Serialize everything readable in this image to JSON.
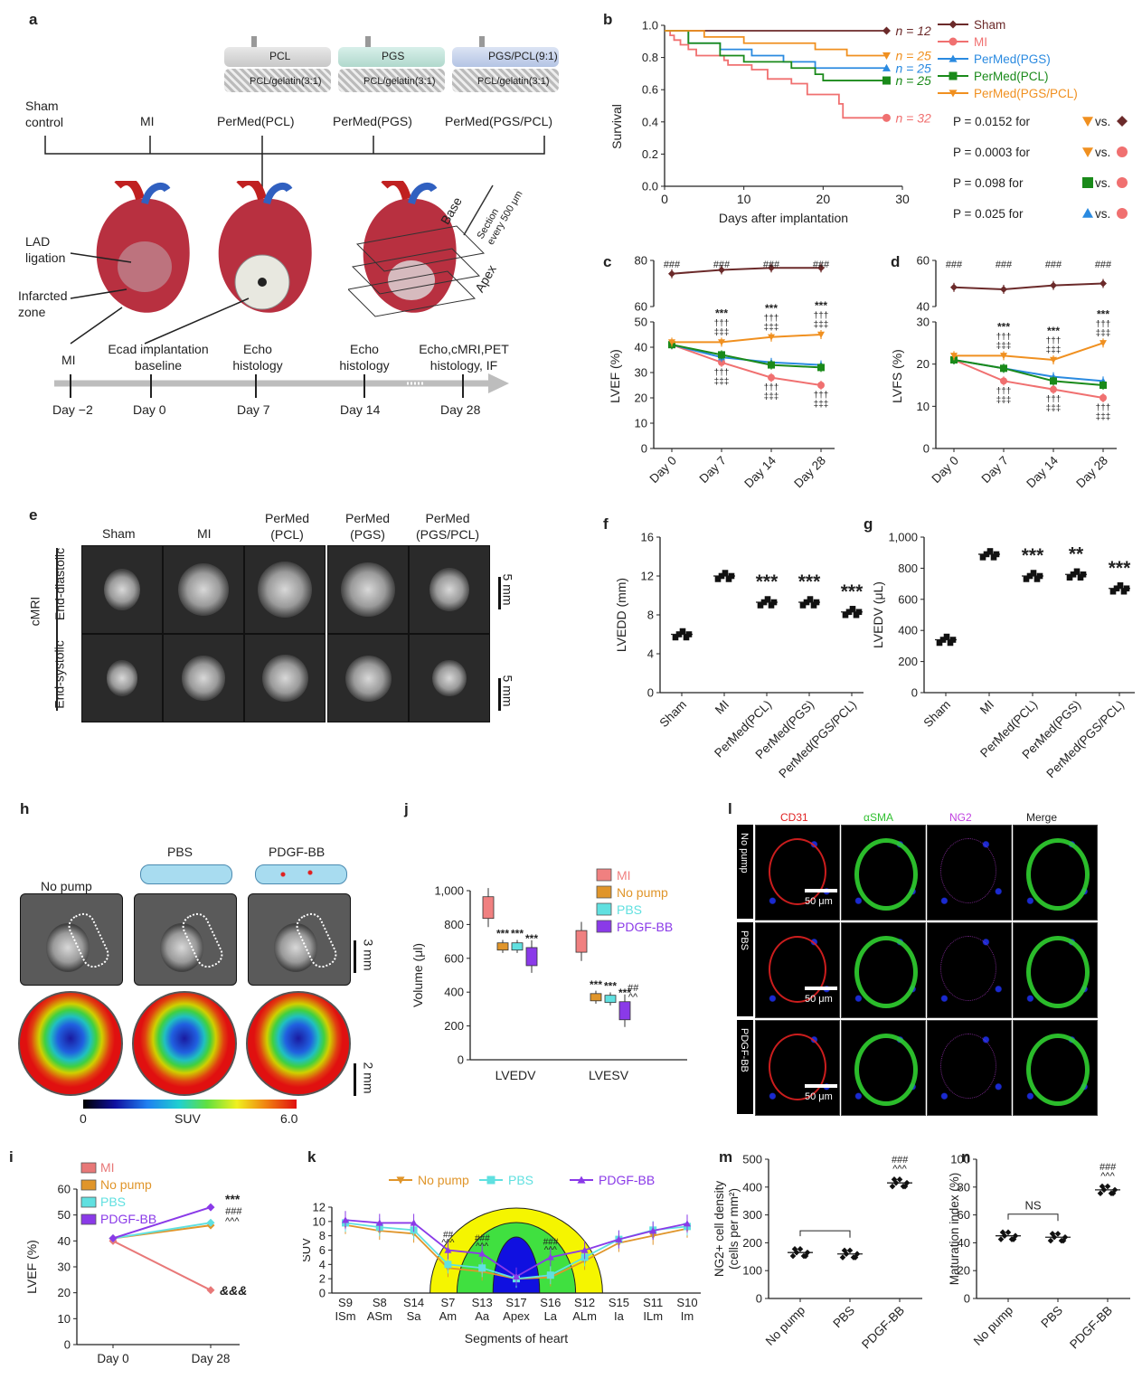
{
  "panel_labels": [
    "a",
    "b",
    "c",
    "d",
    "e",
    "f",
    "g",
    "h",
    "i",
    "j",
    "k",
    "l",
    "m",
    "n"
  ],
  "panel_a": {
    "groups": [
      "Sham\ncontrol",
      "MI",
      "PerMed(PCL)",
      "PerMed(PGS)",
      "PerMed(PGS/PCL)"
    ],
    "device_tops": [
      "PCL",
      "PGS",
      "PGS/PCL(9:1)"
    ],
    "device_bottoms": [
      "PCL/gelatin(3:1)",
      "PCL/gelatin(3:1)",
      "PCL/gelatin(3:1)"
    ],
    "heart_labels": {
      "lad": "LAD\nligation",
      "infarct": "Infarcted\nzone",
      "base": "Base",
      "apex": "Apex",
      "section": "Section\nevery 500 μm"
    },
    "timeline_events": [
      "MI",
      "Ecad implantation\nbaseline",
      "Echo\nhistology",
      "Echo\nhistology",
      "Echo,cMRI,PET\nhistology, IF"
    ],
    "timeline_days": [
      "Day −2",
      "Day 0",
      "Day 7",
      "Day 14",
      "Day 28"
    ]
  },
  "panel_e": {
    "columns": [
      "Sham",
      "MI",
      "PerMed\n(PCL)",
      "PerMed\n(PGS)",
      "PerMed\n(PGS/PCL)"
    ],
    "rows": [
      "End-diastolic",
      "End-systolic"
    ],
    "side_label": "cMRI",
    "scale": "5 mm"
  },
  "panel_h": {
    "columns": [
      "No pump",
      "PBS",
      "PDGF-BB"
    ],
    "scale_top": "3 mm",
    "scale_bottom": "2 mm",
    "colorbar": {
      "min": "0",
      "label": "SUV",
      "max": "6.0"
    }
  },
  "panel_l": {
    "columns": [
      "CD31",
      "αSMA",
      "NG2",
      "Merge"
    ],
    "rows": [
      "No pump",
      "PBS",
      "PDGF-BB"
    ],
    "scale": "50 μm",
    "colors": {
      "cd31": "#e02020",
      "asma": "#30d030",
      "ng2": "#c040e0"
    }
  },
  "chart_data": [
    {
      "panel": "b",
      "type": "line",
      "xlabel": "Days after implantation",
      "ylabel": "Survival",
      "xlim": [
        0,
        30
      ],
      "ylim": [
        0,
        1.0
      ],
      "xticks": [
        0,
        10,
        20,
        30
      ],
      "yticks": [
        0.0,
        0.2,
        0.4,
        0.6,
        0.8,
        1.0
      ],
      "series": [
        {
          "name": "Sham",
          "color": "#6b2a2a",
          "n": "n = 12",
          "steps": [
            [
              0,
              1.0
            ],
            [
              28,
              1.0
            ]
          ]
        },
        {
          "name": "MI",
          "color": "#f07070",
          "n": "n = 32",
          "steps": [
            [
              0,
              1.0
            ],
            [
              0.7,
              0.97
            ],
            [
              1.2,
              0.94
            ],
            [
              2,
              0.91
            ],
            [
              3,
              0.88
            ],
            [
              4,
              0.84
            ],
            [
              7.5,
              0.81
            ],
            [
              8,
              0.78
            ],
            [
              11,
              0.75
            ],
            [
              13,
              0.69
            ],
            [
              16,
              0.66
            ],
            [
              18,
              0.59
            ],
            [
              22,
              0.53
            ],
            [
              22.5,
              0.44
            ],
            [
              28,
              0.44
            ]
          ]
        },
        {
          "name": "PerMed(PGS)",
          "color": "#2a8ae0",
          "n": "n = 25",
          "steps": [
            [
              0,
              1.0
            ],
            [
              3,
              0.92
            ],
            [
              7,
              0.88
            ],
            [
              11,
              0.84
            ],
            [
              15,
              0.8
            ],
            [
              19,
              0.76
            ],
            [
              28,
              0.76
            ]
          ]
        },
        {
          "name": "PerMed(PCL)",
          "color": "#1a8a1a",
          "n": "n = 25",
          "steps": [
            [
              0,
              1.0
            ],
            [
              3,
              0.92
            ],
            [
              7,
              0.84
            ],
            [
              10,
              0.8
            ],
            [
              16,
              0.76
            ],
            [
              19,
              0.72
            ],
            [
              20,
              0.68
            ],
            [
              28,
              0.68
            ]
          ]
        },
        {
          "name": "PerMed(PGS/PCL)",
          "color": "#f09020",
          "n": "n = 25",
          "steps": [
            [
              0,
              1.0
            ],
            [
              5,
              0.96
            ],
            [
              10,
              0.92
            ],
            [
              19,
              0.88
            ],
            [
              23,
              0.84
            ],
            [
              28,
              0.84
            ]
          ]
        }
      ],
      "pvalues": [
        {
          "p": "0.0152",
          "text": "for",
          "a": "PerMed(PGS/PCL)",
          "b": "Sham"
        },
        {
          "p": "0.0003",
          "text": "for",
          "a": "PerMed(PGS/PCL)",
          "b": "MI"
        },
        {
          "p": "0.098",
          "text": "for",
          "a": "PerMed(PCL)",
          "b": "MI"
        },
        {
          "p": "0.025",
          "text": "for",
          "a": "PerMed(PGS)",
          "b": "MI"
        }
      ],
      "p_prefix": "P =",
      "vs": "vs."
    },
    {
      "panel": "c",
      "type": "line",
      "ylabel": "LVEF (%)",
      "categories": [
        "Day 0",
        "Day 7",
        "Day 14",
        "Day 28"
      ],
      "upper_ylim": [
        60,
        80
      ],
      "lower_ylim": [
        0,
        50
      ],
      "upper_yticks": [
        60,
        80
      ],
      "lower_yticks": [
        0,
        10,
        20,
        30,
        40,
        50
      ],
      "series": [
        {
          "name": "Sham",
          "color": "#6b2a2a",
          "values": [
            75,
            77,
            78,
            78
          ]
        },
        {
          "name": "MI",
          "color": "#f07070",
          "values": [
            41,
            34,
            28,
            25
          ]
        },
        {
          "name": "PerMed(PGS)",
          "color": "#2a8ae0",
          "values": [
            41,
            36,
            34,
            33
          ]
        },
        {
          "name": "PerMed(PCL)",
          "color": "#1a8a1a",
          "values": [
            41,
            37,
            33,
            32
          ]
        },
        {
          "name": "PerMed(PGS/PCL)",
          "color": "#f09020",
          "values": [
            42,
            42,
            44,
            45
          ]
        }
      ],
      "annotations": {
        "hash": "###",
        "stars": "***",
        "dagger": "†††",
        "ddagger": "‡‡‡"
      }
    },
    {
      "panel": "d",
      "type": "line",
      "ylabel": "LVFS (%)",
      "categories": [
        "Day 0",
        "Day 7",
        "Day 14",
        "Day 28"
      ],
      "upper_ylim": [
        40,
        60
      ],
      "lower_ylim": [
        0,
        30
      ],
      "upper_yticks": [
        40,
        60
      ],
      "lower_yticks": [
        0,
        10,
        20,
        30
      ],
      "series": [
        {
          "name": "Sham",
          "color": "#6b2a2a",
          "values": [
            48,
            47,
            49,
            50
          ]
        },
        {
          "name": "MI",
          "color": "#f07070",
          "values": [
            21,
            16,
            14,
            12
          ]
        },
        {
          "name": "PerMed(PGS)",
          "color": "#2a8ae0",
          "values": [
            21,
            19,
            17,
            16
          ]
        },
        {
          "name": "PerMed(PCL)",
          "color": "#1a8a1a",
          "values": [
            21,
            19,
            16,
            15
          ]
        },
        {
          "name": "PerMed(PGS/PCL)",
          "color": "#f09020",
          "values": [
            22,
            22,
            21,
            25
          ]
        }
      ],
      "annotations": {
        "hash": "###",
        "stars": "***",
        "dagger": "†††",
        "ddagger": "‡‡‡"
      }
    },
    {
      "panel": "f",
      "type": "scatter",
      "ylabel": "LVEDD (mm)",
      "categories": [
        "Sham",
        "MI",
        "PerMed(PCL)",
        "PerMed(PGS)",
        "PerMed(PGS/PCL)"
      ],
      "ylim": [
        0,
        16
      ],
      "yticks": [
        0,
        4,
        8,
        12,
        16
      ],
      "means": [
        6.0,
        12.0,
        9.3,
        9.3,
        8.3
      ],
      "marks": [
        "",
        "",
        "***",
        "***",
        "***"
      ]
    },
    {
      "panel": "g",
      "type": "scatter",
      "ylabel": "LVEDV (μL)",
      "categories": [
        "Sham",
        "MI",
        "PerMed(PCL)",
        "PerMed(PGS)",
        "PerMed(PGS/PCL)"
      ],
      "ylim": [
        0,
        1000
      ],
      "yticks": [
        "0",
        "200",
        "400",
        "600",
        "800",
        "1,000"
      ],
      "means": [
        340,
        890,
        750,
        760,
        670
      ],
      "marks": [
        "",
        "",
        "***",
        "**",
        "***"
      ]
    },
    {
      "panel": "i",
      "type": "line",
      "ylabel": "LVEF (%)",
      "categories": [
        "Day 0",
        "Day 28"
      ],
      "ylim": [
        0,
        60
      ],
      "yticks": [
        0,
        10,
        20,
        30,
        40,
        50,
        60
      ],
      "series": [
        {
          "name": "MI",
          "color": "#e87878",
          "values": [
            40,
            21
          ]
        },
        {
          "name": "No pump",
          "color": "#e0952a",
          "values": [
            41,
            46
          ]
        },
        {
          "name": "PBS",
          "color": "#60e0e0",
          "values": [
            41,
            47
          ]
        },
        {
          "name": "PDGF-BB",
          "color": "#8a3ae8",
          "values": [
            41,
            53
          ]
        }
      ],
      "annotations": {
        "stars": "***",
        "hash": "###",
        "caret": "^^^",
        "amp": "&&&"
      }
    },
    {
      "panel": "j",
      "type": "bar",
      "ylabel": "Volume (μl)",
      "categories": [
        "LVEDV",
        "LVESV"
      ],
      "ylim": [
        0,
        1000
      ],
      "yticks": [
        "0",
        "200",
        "400",
        "600",
        "800",
        "1,000"
      ],
      "series": [
        {
          "name": "MI",
          "color": "#f08080",
          "values": [
            900,
            700
          ]
        },
        {
          "name": "No pump",
          "color": "#e0952a",
          "values": [
            670,
            370
          ]
        },
        {
          "name": "PBS",
          "color": "#60e0e0",
          "values": [
            670,
            360
          ]
        },
        {
          "name": "PDGF-BB",
          "color": "#8a3ae8",
          "values": [
            610,
            290
          ]
        }
      ],
      "annotations": {
        "stars": "***",
        "hash": "#",
        "hash2": "##",
        "caret": "^^"
      }
    },
    {
      "panel": "k",
      "type": "line",
      "xlabel": "Segments of heart",
      "ylabel": "SUV",
      "categories": [
        "S9\nISm",
        "S8\nASm",
        "S14\nSa",
        "S7\nAm",
        "S13\nAa",
        "S17\nApex",
        "S16\nLa",
        "S12\nALm",
        "S15\nIa",
        "S11\nILm",
        "S10\nIm"
      ],
      "ylim": [
        0,
        12
      ],
      "yticks": [
        0,
        2,
        4,
        6,
        8,
        10,
        12
      ],
      "series": [
        {
          "name": "No pump",
          "color": "#e0952a",
          "values": [
            9.5,
            8.7,
            8.3,
            3.5,
            3.0,
            2.0,
            2.2,
            4.5,
            7.0,
            8.0,
            9.0
          ]
        },
        {
          "name": "PBS",
          "color": "#60e0e0",
          "values": [
            9.8,
            9.2,
            8.8,
            4.0,
            3.5,
            2.0,
            2.5,
            5.0,
            7.5,
            8.8,
            9.3
          ]
        },
        {
          "name": "PDGF-BB",
          "color": "#8a3ae8",
          "values": [
            10.2,
            9.8,
            9.8,
            6.0,
            5.5,
            2.3,
            5.0,
            6.0,
            7.5,
            8.7,
            9.7
          ]
        }
      ],
      "annotations": {
        "hash": "###",
        "hash2": "##",
        "caret": "^^^"
      }
    },
    {
      "panel": "m",
      "type": "scatter",
      "ylabel": "NG2+ cell density\n(cells per mm²)",
      "categories": [
        "No pump",
        "PBS",
        "PDGF-BB"
      ],
      "ylim": [
        0,
        500
      ],
      "yticks": [
        0,
        100,
        200,
        300,
        400,
        500
      ],
      "means": [
        165,
        160,
        415
      ],
      "annotations": {
        "hash": "###",
        "caret": "^^^"
      }
    },
    {
      "panel": "n",
      "type": "scatter",
      "ylabel": "Maturation index (%)",
      "categories": [
        "No pump",
        "PBS",
        "PDGF-BB"
      ],
      "ylim": [
        0,
        100
      ],
      "yticks": [
        0,
        20,
        40,
        60,
        80,
        100
      ],
      "means": [
        45,
        44,
        78
      ],
      "annotations": {
        "hash": "###",
        "caret": "^^^",
        "ns": "NS"
      }
    }
  ]
}
